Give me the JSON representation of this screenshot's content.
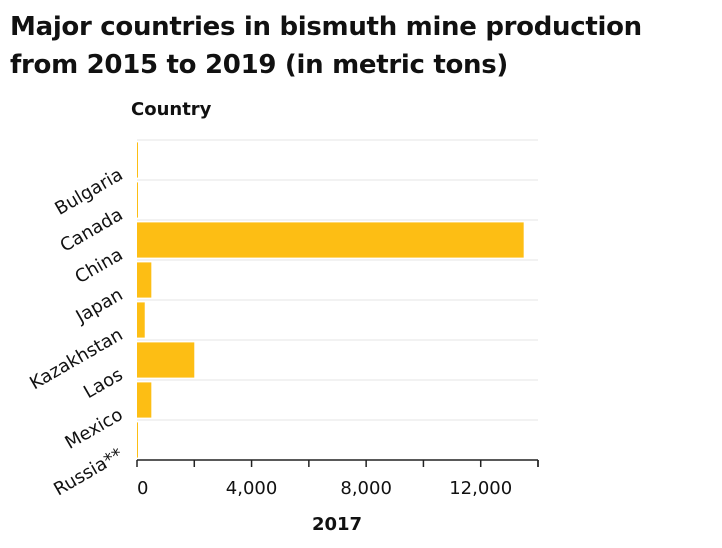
{
  "chart_data": {
    "type": "bar",
    "orientation": "horizontal",
    "title": "Major countries in bismuth mine production from 2015 to 2019 (in metric tons)",
    "xlabel": "2017",
    "ylabel": "Country",
    "categories": [
      "Bulgaria",
      "Canada",
      "China",
      "Japan",
      "Kazakhstan",
      "Laos",
      "Mexico",
      "Russia**"
    ],
    "values": [
      20,
      5,
      13500,
      500,
      270,
      2000,
      500,
      0
    ],
    "xlim": [
      0,
      14000
    ],
    "xticks": [
      0,
      4000,
      8000,
      12000
    ],
    "xtick_labels": [
      "0",
      "4,000",
      "8,000",
      "12,000"
    ],
    "grid": "horizontal",
    "legend": "none",
    "bar_color": "#FDBE14",
    "grid_color": "#E6E6E6",
    "axis_color": "#222222"
  }
}
